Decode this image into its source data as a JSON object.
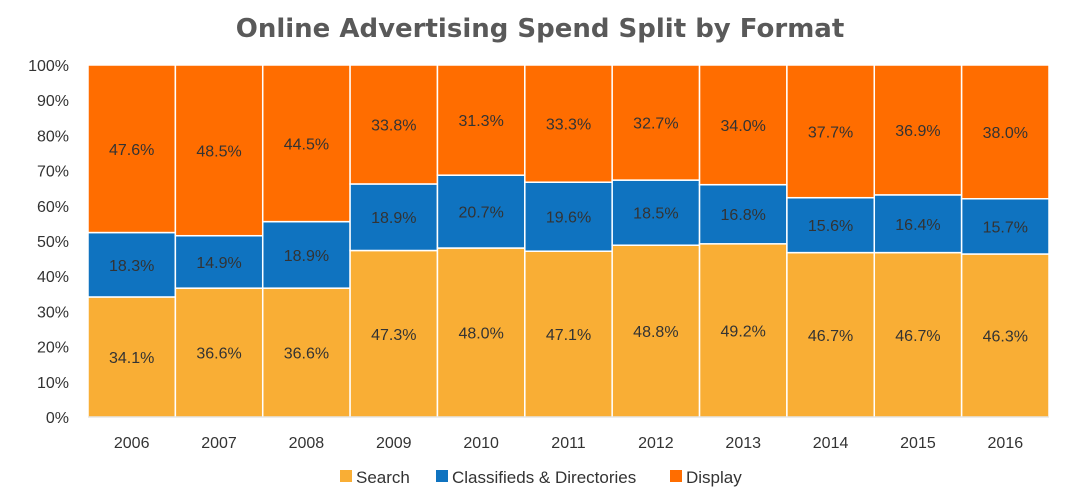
{
  "chart_data": {
    "type": "bar",
    "stacked": true,
    "title": "Online Advertising Spend Split by Format",
    "xlabel": "",
    "ylabel": "",
    "ylim": [
      0,
      100
    ],
    "y_ticks": [
      "0%",
      "10%",
      "20%",
      "30%",
      "40%",
      "50%",
      "60%",
      "70%",
      "80%",
      "90%",
      "100%"
    ],
    "grid": false,
    "legend_position": "bottom",
    "categories": [
      "2006",
      "2007",
      "2008",
      "2009",
      "2010",
      "2011",
      "2012",
      "2013",
      "2014",
      "2015",
      "2016"
    ],
    "series": [
      {
        "name": "Search",
        "color": "#F9AE35",
        "values": [
          34.1,
          36.6,
          36.6,
          47.3,
          48.0,
          47.1,
          48.8,
          49.2,
          46.7,
          46.7,
          46.3
        ],
        "labels": [
          "34.1%",
          "36.6%",
          "36.6%",
          "47.3%",
          "48.0%",
          "47.1%",
          "48.8%",
          "49.2%",
          "46.7%",
          "46.7%",
          "46.3%"
        ]
      },
      {
        "name": "Classifieds & Directories",
        "color": "#0F73C0",
        "values": [
          18.3,
          14.9,
          18.9,
          18.9,
          20.7,
          19.6,
          18.5,
          16.8,
          15.6,
          16.4,
          15.7
        ],
        "labels": [
          "18.3%",
          "14.9%",
          "18.9%",
          "18.9%",
          "20.7%",
          "19.6%",
          "18.5%",
          "16.8%",
          "15.6%",
          "16.4%",
          "15.7%"
        ]
      },
      {
        "name": "Display",
        "color": "#FF6D00",
        "values": [
          47.6,
          48.5,
          44.5,
          33.8,
          31.3,
          33.3,
          32.7,
          34.0,
          37.7,
          36.9,
          38.0
        ],
        "labels": [
          "47.6%",
          "48.5%",
          "44.5%",
          "33.8%",
          "31.3%",
          "33.3%",
          "32.7%",
          "34.0%",
          "37.7%",
          "36.9%",
          "38.0%"
        ]
      }
    ]
  }
}
